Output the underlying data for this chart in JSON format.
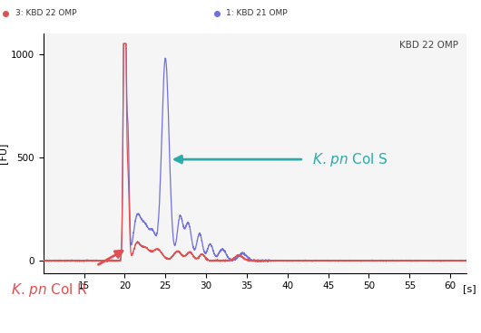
{
  "title_label": "KBD 22 OMP",
  "legend_label_red": "3: KBD 22 OMP",
  "legend_label_blue": "1: KBD 21 OMP",
  "xlim": [
    10,
    62
  ],
  "ylim": [
    -60,
    1100
  ],
  "xticks": [
    15,
    20,
    25,
    30,
    35,
    40,
    45,
    50,
    55,
    60
  ],
  "yticks": [
    0,
    500,
    1000
  ],
  "color_red": "#e05050",
  "color_blue": "#7070e0",
  "color_teal": "#2aacaa",
  "background_color": "#ffffff",
  "plot_bg_color": "#f5f5f5",
  "legend_bg_color": "#e8e8e8"
}
